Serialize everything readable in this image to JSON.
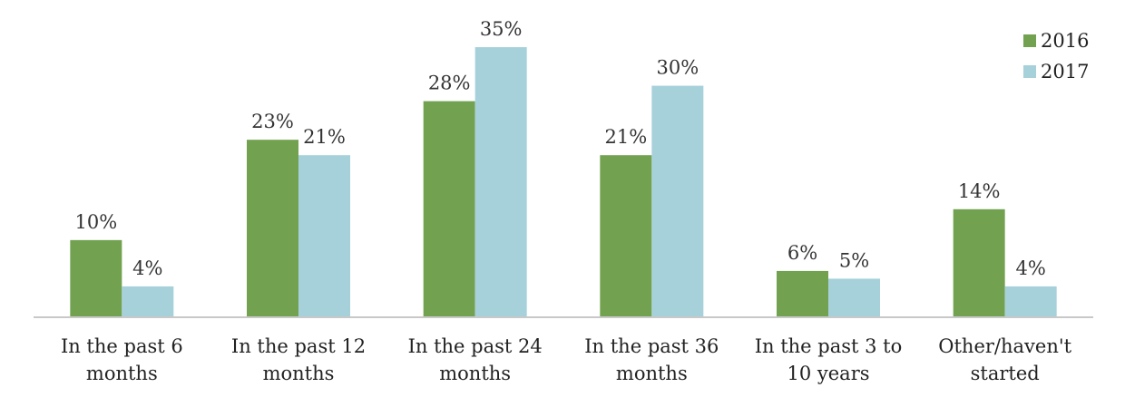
{
  "chart_data": {
    "type": "bar",
    "categories": [
      [
        "In the past 6",
        "months"
      ],
      [
        "In the past 12",
        "months"
      ],
      [
        "In the past 24",
        "months"
      ],
      [
        "In the past 36",
        "months"
      ],
      [
        "In the past 3 to",
        "10 years"
      ],
      [
        "Other/haven't",
        "started"
      ]
    ],
    "series": [
      {
        "name": "2016",
        "color": "#72a250",
        "values": [
          10,
          23,
          28,
          21,
          6,
          14
        ],
        "labels": [
          "10%",
          "23%",
          "28%",
          "21%",
          "6%",
          "14%"
        ]
      },
      {
        "name": "2017",
        "color": "#a7d1da",
        "values": [
          4,
          21,
          35,
          30,
          5,
          4
        ],
        "labels": [
          "4%",
          "21%",
          "35%",
          "30%",
          "5%",
          "4%"
        ]
      }
    ],
    "legend_position": "top-right",
    "grid": false,
    "ylim": [
      0,
      35
    ]
  }
}
